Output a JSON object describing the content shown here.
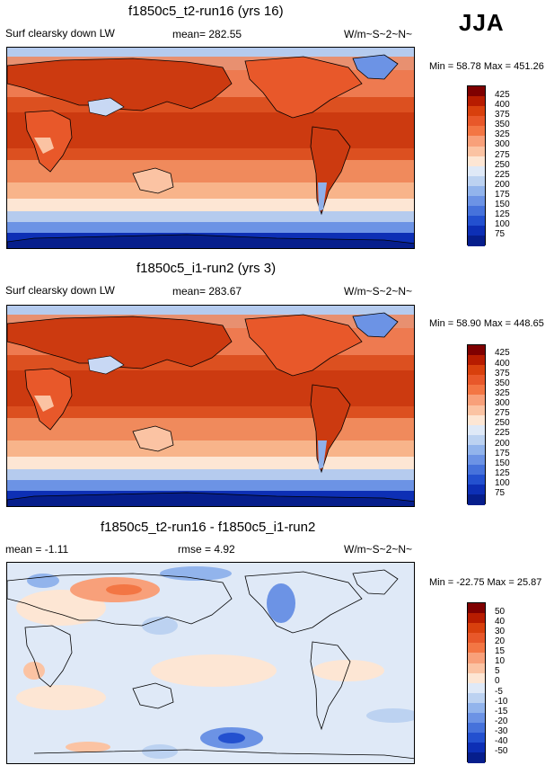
{
  "season": "JJA",
  "panels": [
    {
      "id": "panel1",
      "title": "f1850c5_t2-run16 (yrs 16)",
      "left_label": "Surf clearsky down LW",
      "center_label": "mean= 282.55",
      "units": "W/m~S~2~N~",
      "minmax": "Min =  58.78 Max = 451.26",
      "type": "absolute",
      "colorbar": {
        "labels": [
          "425",
          "400",
          "375",
          "350",
          "325",
          "300",
          "275",
          "250",
          "225",
          "200",
          "175",
          "150",
          "125",
          "100",
          "75"
        ],
        "colors": [
          "#7f0000",
          "#b71c00",
          "#d8400d",
          "#e8582a",
          "#f37644",
          "#f8a07a",
          "#fbc3a3",
          "#fde6d4",
          "#dfe9f7",
          "#bcd2f1",
          "#92b4ec",
          "#6c93e5",
          "#4672db",
          "#2350cf",
          "#0d2fb5",
          "#061e8c"
        ]
      }
    },
    {
      "id": "panel2",
      "title": "f1850c5_i1-run2 (yrs 3)",
      "left_label": "Surf clearsky down LW",
      "center_label": "mean= 283.67",
      "units": "W/m~S~2~N~",
      "minmax": "Min =  58.90 Max = 448.65",
      "type": "absolute",
      "colorbar": {
        "labels": [
          "425",
          "400",
          "375",
          "350",
          "325",
          "300",
          "275",
          "250",
          "225",
          "200",
          "175",
          "150",
          "125",
          "100",
          "75"
        ],
        "colors": [
          "#7f0000",
          "#b71c00",
          "#d8400d",
          "#e8582a",
          "#f37644",
          "#f8a07a",
          "#fbc3a3",
          "#fde6d4",
          "#dfe9f7",
          "#bcd2f1",
          "#92b4ec",
          "#6c93e5",
          "#4672db",
          "#2350cf",
          "#0d2fb5",
          "#061e8c"
        ]
      }
    },
    {
      "id": "panel3",
      "title": "f1850c5_t2-run16 - f1850c5_i1-run2",
      "left_label": "mean =  -1.11",
      "center_label": "rmse =  4.92",
      "units": "W/m~S~2~N~",
      "minmax": "Min = -22.75 Max =  25.87",
      "type": "difference",
      "colorbar": {
        "labels": [
          "50",
          "40",
          "30",
          "20",
          "15",
          "10",
          "5",
          "0",
          "-5",
          "-10",
          "-15",
          "-20",
          "-30",
          "-40",
          "-50"
        ],
        "colors": [
          "#7f0000",
          "#b71c00",
          "#d8400d",
          "#e8582a",
          "#f37644",
          "#f8a07a",
          "#fbc3a3",
          "#fde6d4",
          "#dfe9f7",
          "#bcd2f1",
          "#92b4ec",
          "#6c93e5",
          "#4672db",
          "#2350cf",
          "#0d2fb5",
          "#061e8c"
        ]
      }
    }
  ]
}
